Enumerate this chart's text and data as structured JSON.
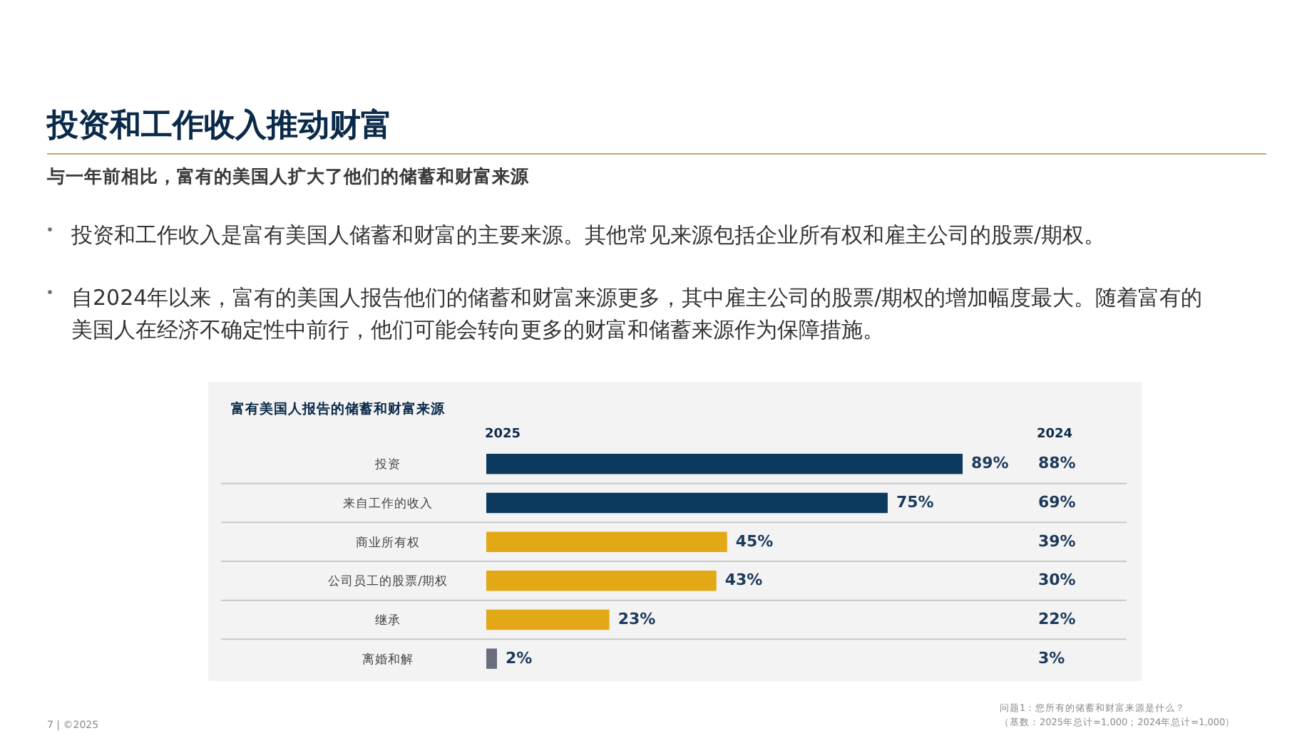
{
  "chart_data": {
    "type": "bar",
    "orientation": "horizontal",
    "title": "投资和工作收入推动财富",
    "subtitle": "与一年前相比，富有的美国人扩大了他们的储蓄和财富来源",
    "categories": [
      "投资",
      "来自工作的收入",
      "商业所有权",
      "公司员工的股票/期权",
      "继承",
      "离婚和解"
    ],
    "series": [
      {
        "name": "2025",
        "colors": [
          "#0c3a5e",
          "#0c3a5e",
          "#e2a816",
          "#e2a816",
          "#e2a816",
          "#6b6d7e"
        ],
        "values": [
          89,
          75,
          45,
          43,
          23,
          2
        ],
        "value_labels": [
          "89%",
          "75%",
          "45%",
          "43%",
          "23%",
          "2%"
        ]
      }
    ],
    "annotations": [
      "富有美国人报告的储蓄和财富来源",
      "投资和工作收入是富有美国人储蓄和财富的主要来源。其他常见来源包括企业所有权和雇主公司的股票/期权。",
      "自2024年以来，富有的美国人报告他们的储蓄和财富来源更多，其中雇主公司的股票/期权的增加幅度最大。随着富有的美国人在经济不确定性中前行，他们可能会转向更多的财富和储蓄来源作为保障措施。",
      "2024",
      "问题1：您所有的储蓄和财富来源是什么？",
      "（基数：2025年总计=1,000；2024年总计=1,000）",
      "7 | ©2025",
      "88%",
      "69%",
      "39%",
      "30%",
      "22%",
      "3%"
    ]
  }
}
